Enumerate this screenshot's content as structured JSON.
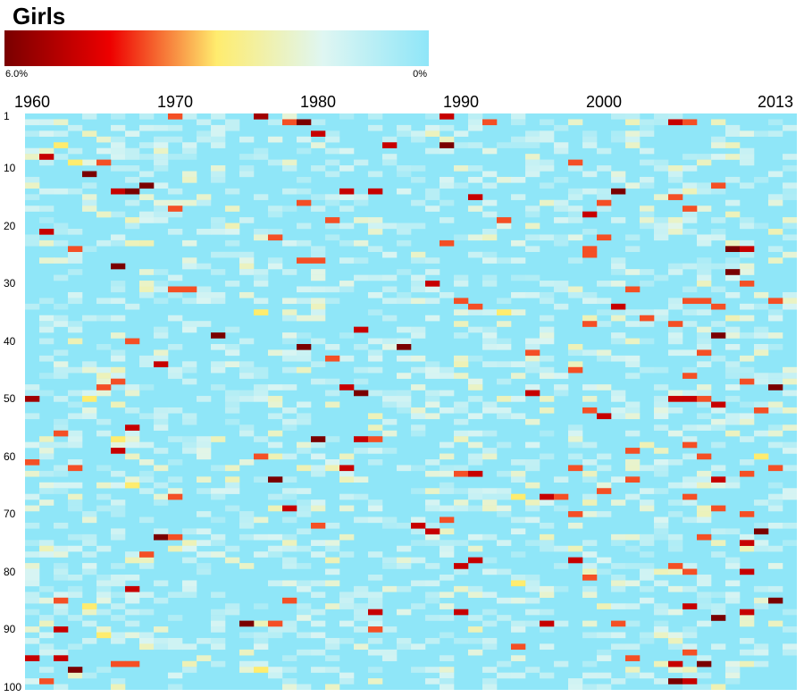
{
  "chart_data": {
    "type": "heatmap",
    "title": "Girls",
    "x": {
      "tick_labels": [
        "1960",
        "1970",
        "1980",
        "1990",
        "2000",
        "2013"
      ],
      "range": [
        1960,
        2013
      ]
    },
    "y": {
      "tick_labels": [
        "1",
        "10",
        "20",
        "30",
        "40",
        "50",
        "60",
        "70",
        "80",
        "90",
        "100"
      ],
      "range": [
        1,
        100
      ]
    },
    "colorbar": {
      "min_label": "0%",
      "max_label": "6.0%",
      "range": [
        0,
        6.0
      ],
      "unit": "%",
      "colors": [
        "#7a0000",
        "#ee0000",
        "#ffec6e",
        "#dff6f2",
        "#8fe6f8"
      ]
    },
    "background_color": "#8fe6f8",
    "cells": [
      [
        1965,
        9,
        4
      ],
      [
        1970,
        1,
        4
      ],
      [
        1976,
        1,
        5.5
      ],
      [
        1978,
        2,
        4
      ],
      [
        1962,
        6,
        3
      ],
      [
        1961,
        8,
        5
      ],
      [
        1963,
        9,
        3
      ],
      [
        1964,
        11,
        6
      ],
      [
        1966,
        14,
        5
      ],
      [
        1967,
        14,
        6
      ],
      [
        1968,
        13,
        6
      ],
      [
        1971,
        12,
        2
      ],
      [
        1974,
        17,
        2
      ],
      [
        1970,
        17,
        4
      ],
      [
        1965,
        18,
        2
      ],
      [
        1961,
        21,
        5
      ],
      [
        1963,
        24,
        4
      ],
      [
        1966,
        27,
        6
      ],
      [
        1968,
        30,
        2
      ],
      [
        1970,
        31,
        4
      ],
      [
        1971,
        31,
        4
      ],
      [
        1973,
        39,
        6
      ],
      [
        1967,
        40,
        4
      ],
      [
        1969,
        44,
        5
      ],
      [
        1966,
        47,
        4
      ],
      [
        1965,
        48,
        4
      ],
      [
        1964,
        50,
        3
      ],
      [
        1960,
        50,
        5.5
      ],
      [
        1967,
        55,
        5
      ],
      [
        1966,
        57,
        3
      ],
      [
        1962,
        56,
        4
      ],
      [
        1966,
        59,
        5
      ],
      [
        1960,
        61,
        4
      ],
      [
        1963,
        62,
        4
      ],
      [
        1967,
        65,
        3
      ],
      [
        1970,
        67,
        4
      ],
      [
        1969,
        74,
        6
      ],
      [
        1970,
        74,
        4
      ],
      [
        1968,
        77,
        4
      ],
      [
        1967,
        83,
        5
      ],
      [
        1962,
        85,
        4
      ],
      [
        1964,
        86,
        3
      ],
      [
        1962,
        90,
        5
      ],
      [
        1965,
        91,
        3
      ],
      [
        1960,
        95,
        5
      ],
      [
        1962,
        95,
        5
      ],
      [
        1966,
        96,
        4
      ],
      [
        1967,
        96,
        4
      ],
      [
        1963,
        97,
        6
      ],
      [
        1961,
        99,
        4
      ],
      [
        1979,
        2,
        6
      ],
      [
        1980,
        4,
        5
      ],
      [
        1982,
        14,
        5
      ],
      [
        1984,
        14,
        5
      ],
      [
        1985,
        6,
        5
      ],
      [
        1979,
        16,
        4
      ],
      [
        1981,
        19,
        4
      ],
      [
        1977,
        22,
        4
      ],
      [
        1979,
        26,
        4
      ],
      [
        1980,
        26,
        4
      ],
      [
        1976,
        35,
        3
      ],
      [
        1979,
        41,
        6
      ],
      [
        1981,
        43,
        4
      ],
      [
        1983,
        38,
        5
      ],
      [
        1982,
        48,
        5
      ],
      [
        1983,
        49,
        6
      ],
      [
        1980,
        57,
        6
      ],
      [
        1983,
        57,
        5
      ],
      [
        1984,
        57,
        4
      ],
      [
        1982,
        62,
        5
      ],
      [
        1977,
        64,
        6
      ],
      [
        1978,
        69,
        5
      ],
      [
        1980,
        72,
        4
      ],
      [
        1976,
        60,
        4
      ],
      [
        1975,
        89,
        6
      ],
      [
        1977,
        89,
        4
      ],
      [
        1978,
        85,
        4
      ],
      [
        1976,
        97,
        3
      ],
      [
        1984,
        87,
        5
      ],
      [
        1984,
        90,
        4
      ],
      [
        1987,
        72,
        5
      ],
      [
        1986,
        41,
        6
      ],
      [
        1989,
        1,
        5
      ],
      [
        1989,
        6,
        6
      ],
      [
        1992,
        2,
        4
      ],
      [
        1991,
        15,
        5
      ],
      [
        1993,
        19,
        4
      ],
      [
        1989,
        23,
        4
      ],
      [
        1988,
        30,
        5
      ],
      [
        1990,
        33,
        4
      ],
      [
        1991,
        34,
        4
      ],
      [
        1993,
        35,
        3
      ],
      [
        1995,
        42,
        4
      ],
      [
        1995,
        49,
        5
      ],
      [
        1990,
        63,
        4
      ],
      [
        1991,
        63,
        5
      ],
      [
        1994,
        67,
        3
      ],
      [
        1996,
        67,
        5
      ],
      [
        1997,
        67,
        4
      ],
      [
        1989,
        71,
        4
      ],
      [
        1990,
        79,
        5
      ],
      [
        1991,
        78,
        5
      ],
      [
        1988,
        73,
        5
      ],
      [
        1990,
        87,
        5
      ],
      [
        1994,
        82,
        3
      ],
      [
        1996,
        89,
        5
      ],
      [
        1994,
        93,
        4
      ],
      [
        1998,
        9,
        4
      ],
      [
        1999,
        18,
        5
      ],
      [
        2000,
        16,
        4
      ],
      [
        2001,
        14,
        6
      ],
      [
        2000,
        22,
        4
      ],
      [
        1999,
        24,
        4
      ],
      [
        1999,
        25,
        4
      ],
      [
        2002,
        31,
        4
      ],
      [
        2001,
        34,
        5
      ],
      [
        2003,
        36,
        4
      ],
      [
        1999,
        37,
        4
      ],
      [
        1998,
        45,
        4
      ],
      [
        1999,
        52,
        4
      ],
      [
        2000,
        53,
        5
      ],
      [
        2002,
        59,
        4
      ],
      [
        1998,
        62,
        4
      ],
      [
        2000,
        66,
        4
      ],
      [
        2002,
        64,
        4
      ],
      [
        1998,
        70,
        4
      ],
      [
        1998,
        78,
        5
      ],
      [
        1999,
        81,
        4
      ],
      [
        2001,
        89,
        4
      ],
      [
        2002,
        95,
        4
      ],
      [
        2005,
        2,
        5
      ],
      [
        2006,
        2,
        4
      ],
      [
        2005,
        15,
        4
      ],
      [
        2006,
        17,
        4
      ],
      [
        2008,
        13,
        4
      ],
      [
        2009,
        24,
        6
      ],
      [
        2010,
        24,
        5
      ],
      [
        2009,
        28,
        6
      ],
      [
        2010,
        30,
        4
      ],
      [
        2006,
        33,
        4
      ],
      [
        2007,
        33,
        4
      ],
      [
        2008,
        34,
        4
      ],
      [
        2005,
        37,
        4
      ],
      [
        2008,
        39,
        6
      ],
      [
        2007,
        42,
        4
      ],
      [
        2006,
        46,
        4
      ],
      [
        2005,
        50,
        5
      ],
      [
        2006,
        50,
        5
      ],
      [
        2007,
        50,
        4
      ],
      [
        2008,
        51,
        5
      ],
      [
        2010,
        47,
        4
      ],
      [
        2012,
        48,
        6
      ],
      [
        2006,
        58,
        4
      ],
      [
        2007,
        60,
        4
      ],
      [
        2008,
        64,
        5
      ],
      [
        2010,
        63,
        4
      ],
      [
        2006,
        67,
        4
      ],
      [
        2008,
        69,
        4
      ],
      [
        2010,
        70,
        4
      ],
      [
        2011,
        73,
        6
      ],
      [
        2007,
        74,
        4
      ],
      [
        2010,
        75,
        5
      ],
      [
        2005,
        79,
        4
      ],
      [
        2006,
        80,
        4
      ],
      [
        2010,
        80,
        5
      ],
      [
        2006,
        86,
        5
      ],
      [
        2008,
        88,
        6
      ],
      [
        2010,
        87,
        5
      ],
      [
        2006,
        94,
        4
      ],
      [
        2007,
        96,
        6
      ],
      [
        2005,
        96,
        5
      ],
      [
        2005,
        99,
        6
      ],
      [
        2006,
        99,
        5
      ],
      [
        2012,
        85,
        6
      ],
      [
        2011,
        52,
        4
      ],
      [
        2012,
        33,
        4
      ],
      [
        2011,
        60,
        3
      ],
      [
        2012,
        62,
        4
      ]
    ]
  }
}
